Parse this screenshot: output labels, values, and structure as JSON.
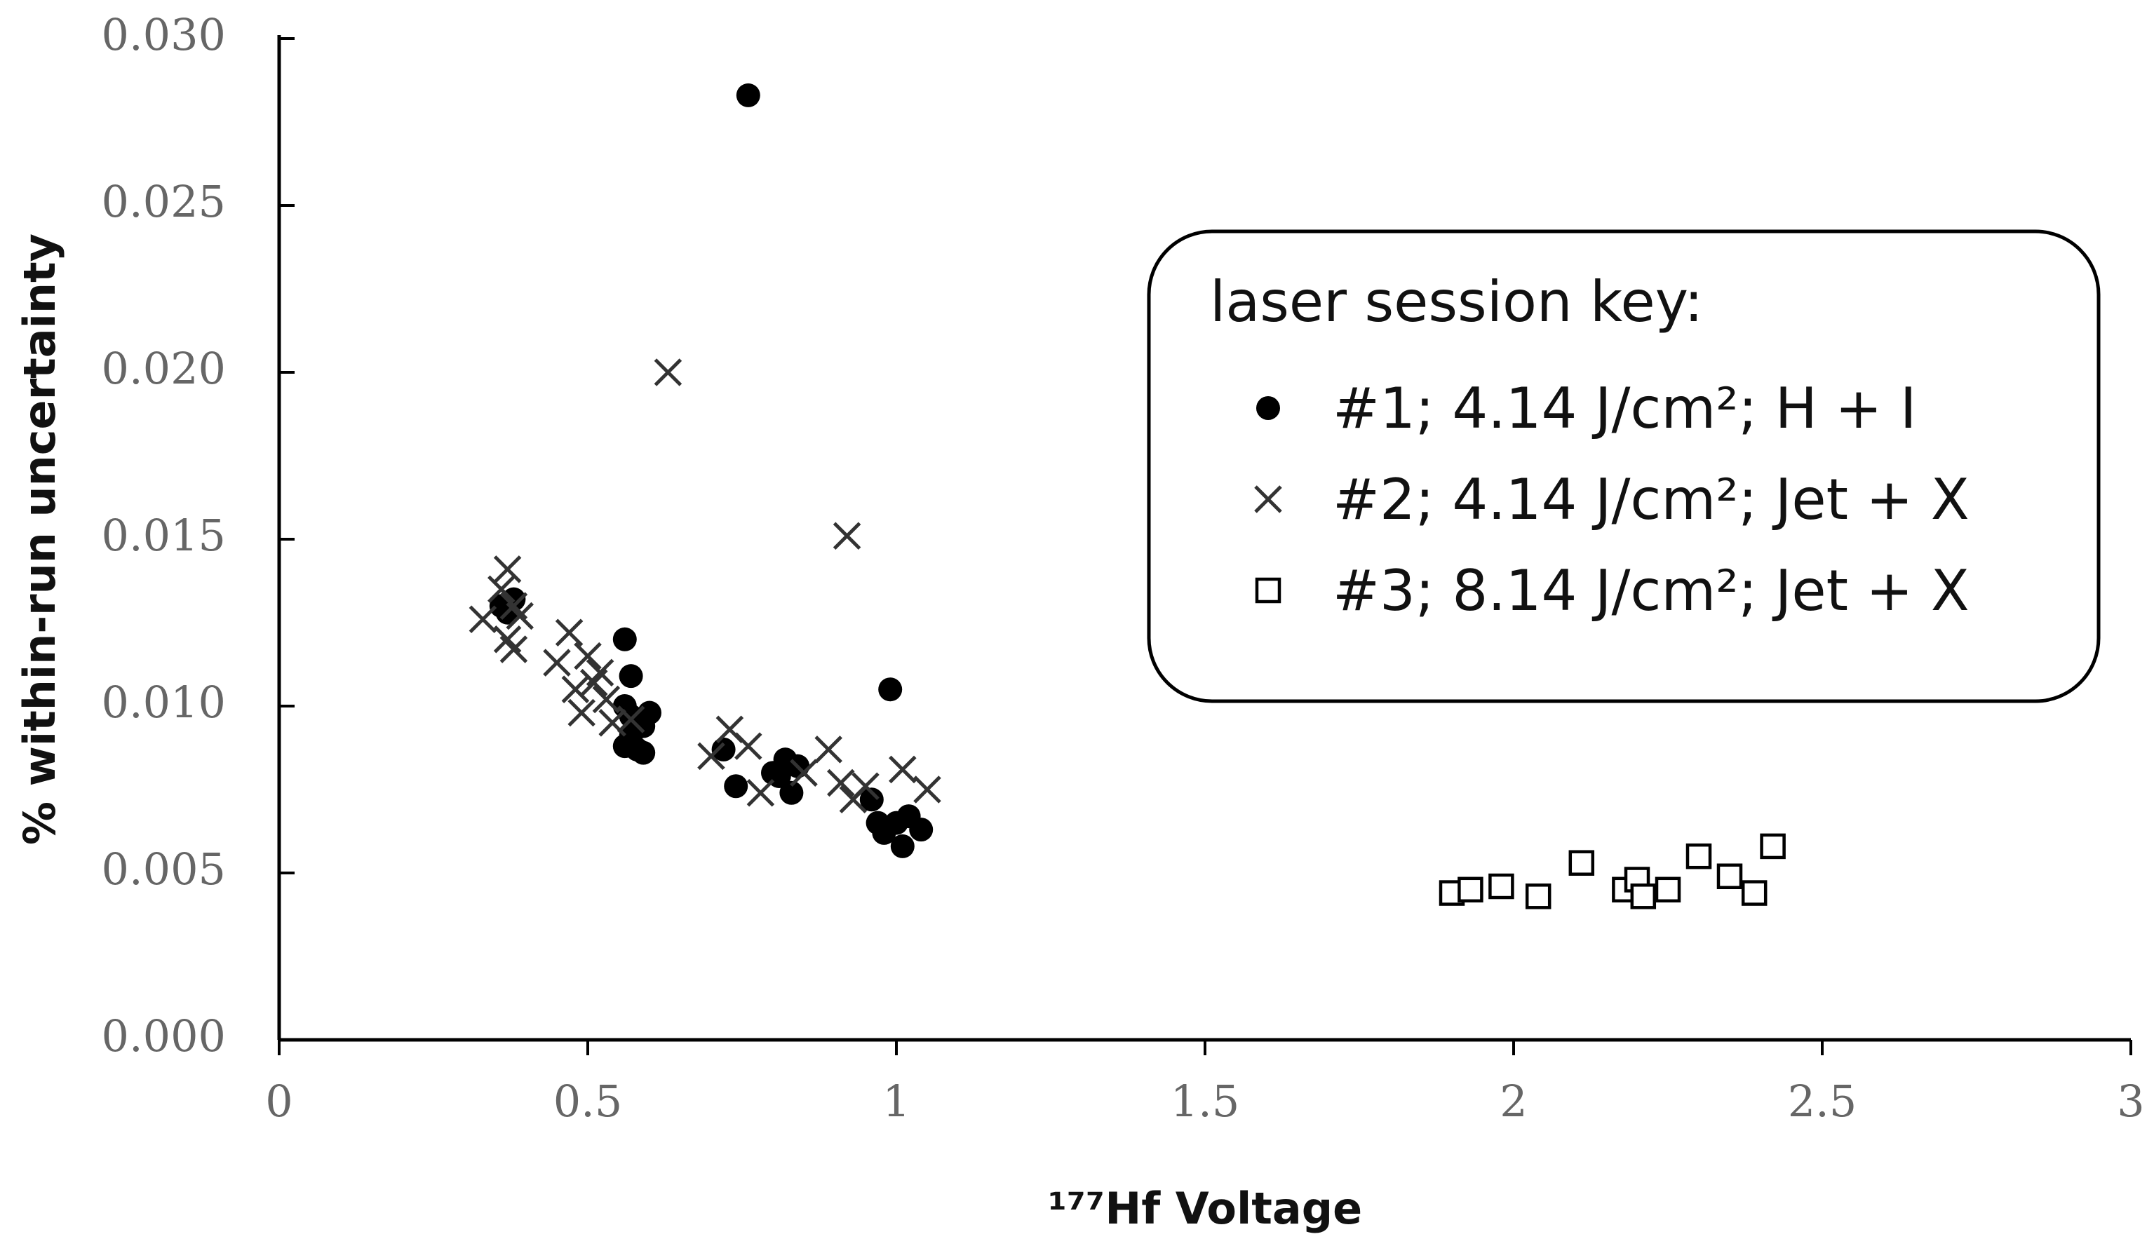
{
  "chart_data": {
    "type": "scatter",
    "title": "",
    "xlabel": "¹⁷⁷Hf Voltage",
    "ylabel": "% within-run uncertainty",
    "xlim": [
      0,
      3
    ],
    "ylim": [
      0,
      0.03
    ],
    "xticks": [
      "0",
      "0.5",
      "1",
      "1.5",
      "2",
      "2.5",
      "3"
    ],
    "yticks": [
      "0.000",
      "0.005",
      "0.010",
      "0.015",
      "0.020",
      "0.025",
      "0.030"
    ],
    "grid": false,
    "legend": {
      "title": "laser session key:",
      "position": "upper-right",
      "entries": [
        "#1;  4.14 J/cm²; H + I",
        "#2;  4.14 J/cm²; Jet + X",
        "#3;  8.14 J/cm²; Jet + X"
      ]
    },
    "series": [
      {
        "marker": "filled-circle",
        "color": "#000000",
        "points": [
          [
            0.76,
            0.0283
          ],
          [
            0.99,
            0.0105
          ],
          [
            0.56,
            0.012
          ],
          [
            0.57,
            0.0109
          ],
          [
            0.56,
            0.01
          ],
          [
            0.57,
            0.0097
          ],
          [
            0.59,
            0.0094
          ],
          [
            0.6,
            0.0098
          ],
          [
            0.57,
            0.0091
          ],
          [
            0.56,
            0.0088
          ],
          [
            0.58,
            0.0087
          ],
          [
            0.59,
            0.0086
          ],
          [
            0.36,
            0.013
          ],
          [
            0.37,
            0.0128
          ],
          [
            0.38,
            0.0132
          ],
          [
            0.72,
            0.0087
          ],
          [
            0.74,
            0.0076
          ],
          [
            0.8,
            0.008
          ],
          [
            0.82,
            0.0084
          ],
          [
            0.84,
            0.0082
          ],
          [
            0.83,
            0.0074
          ],
          [
            0.81,
            0.0079
          ],
          [
            0.96,
            0.0072
          ],
          [
            0.97,
            0.0065
          ],
          [
            0.98,
            0.0062
          ],
          [
            1.0,
            0.0065
          ],
          [
            1.02,
            0.0067
          ],
          [
            1.04,
            0.0063
          ],
          [
            1.01,
            0.0058
          ]
        ]
      },
      {
        "marker": "x",
        "color": "#333333",
        "points": [
          [
            0.63,
            0.02
          ],
          [
            0.92,
            0.0151
          ],
          [
            0.37,
            0.0141
          ],
          [
            0.36,
            0.0135
          ],
          [
            0.38,
            0.013
          ],
          [
            0.39,
            0.0127
          ],
          [
            0.33,
            0.0126
          ],
          [
            0.37,
            0.012
          ],
          [
            0.38,
            0.0117
          ],
          [
            0.47,
            0.0122
          ],
          [
            0.45,
            0.0113
          ],
          [
            0.5,
            0.0115
          ],
          [
            0.52,
            0.011
          ],
          [
            0.48,
            0.0105
          ],
          [
            0.51,
            0.0107
          ],
          [
            0.53,
            0.0102
          ],
          [
            0.49,
            0.0098
          ],
          [
            0.54,
            0.0095
          ],
          [
            0.57,
            0.0096
          ],
          [
            0.7,
            0.0085
          ],
          [
            0.73,
            0.0093
          ],
          [
            0.76,
            0.0088
          ],
          [
            0.78,
            0.0074
          ],
          [
            0.85,
            0.008
          ],
          [
            0.89,
            0.0087
          ],
          [
            0.91,
            0.0077
          ],
          [
            0.93,
            0.0072
          ],
          [
            0.95,
            0.0076
          ],
          [
            1.01,
            0.0081
          ],
          [
            1.05,
            0.0075
          ]
        ]
      },
      {
        "marker": "open-square",
        "color": "#000000",
        "points": [
          [
            1.9,
            0.0044
          ],
          [
            1.93,
            0.0045
          ],
          [
            1.98,
            0.0046
          ],
          [
            2.04,
            0.0043
          ],
          [
            2.11,
            0.0053
          ],
          [
            2.18,
            0.0045
          ],
          [
            2.2,
            0.0048
          ],
          [
            2.21,
            0.0043
          ],
          [
            2.25,
            0.0045
          ],
          [
            2.3,
            0.0055
          ],
          [
            2.35,
            0.0049
          ],
          [
            2.39,
            0.0044
          ],
          [
            2.42,
            0.0058
          ]
        ]
      }
    ]
  }
}
